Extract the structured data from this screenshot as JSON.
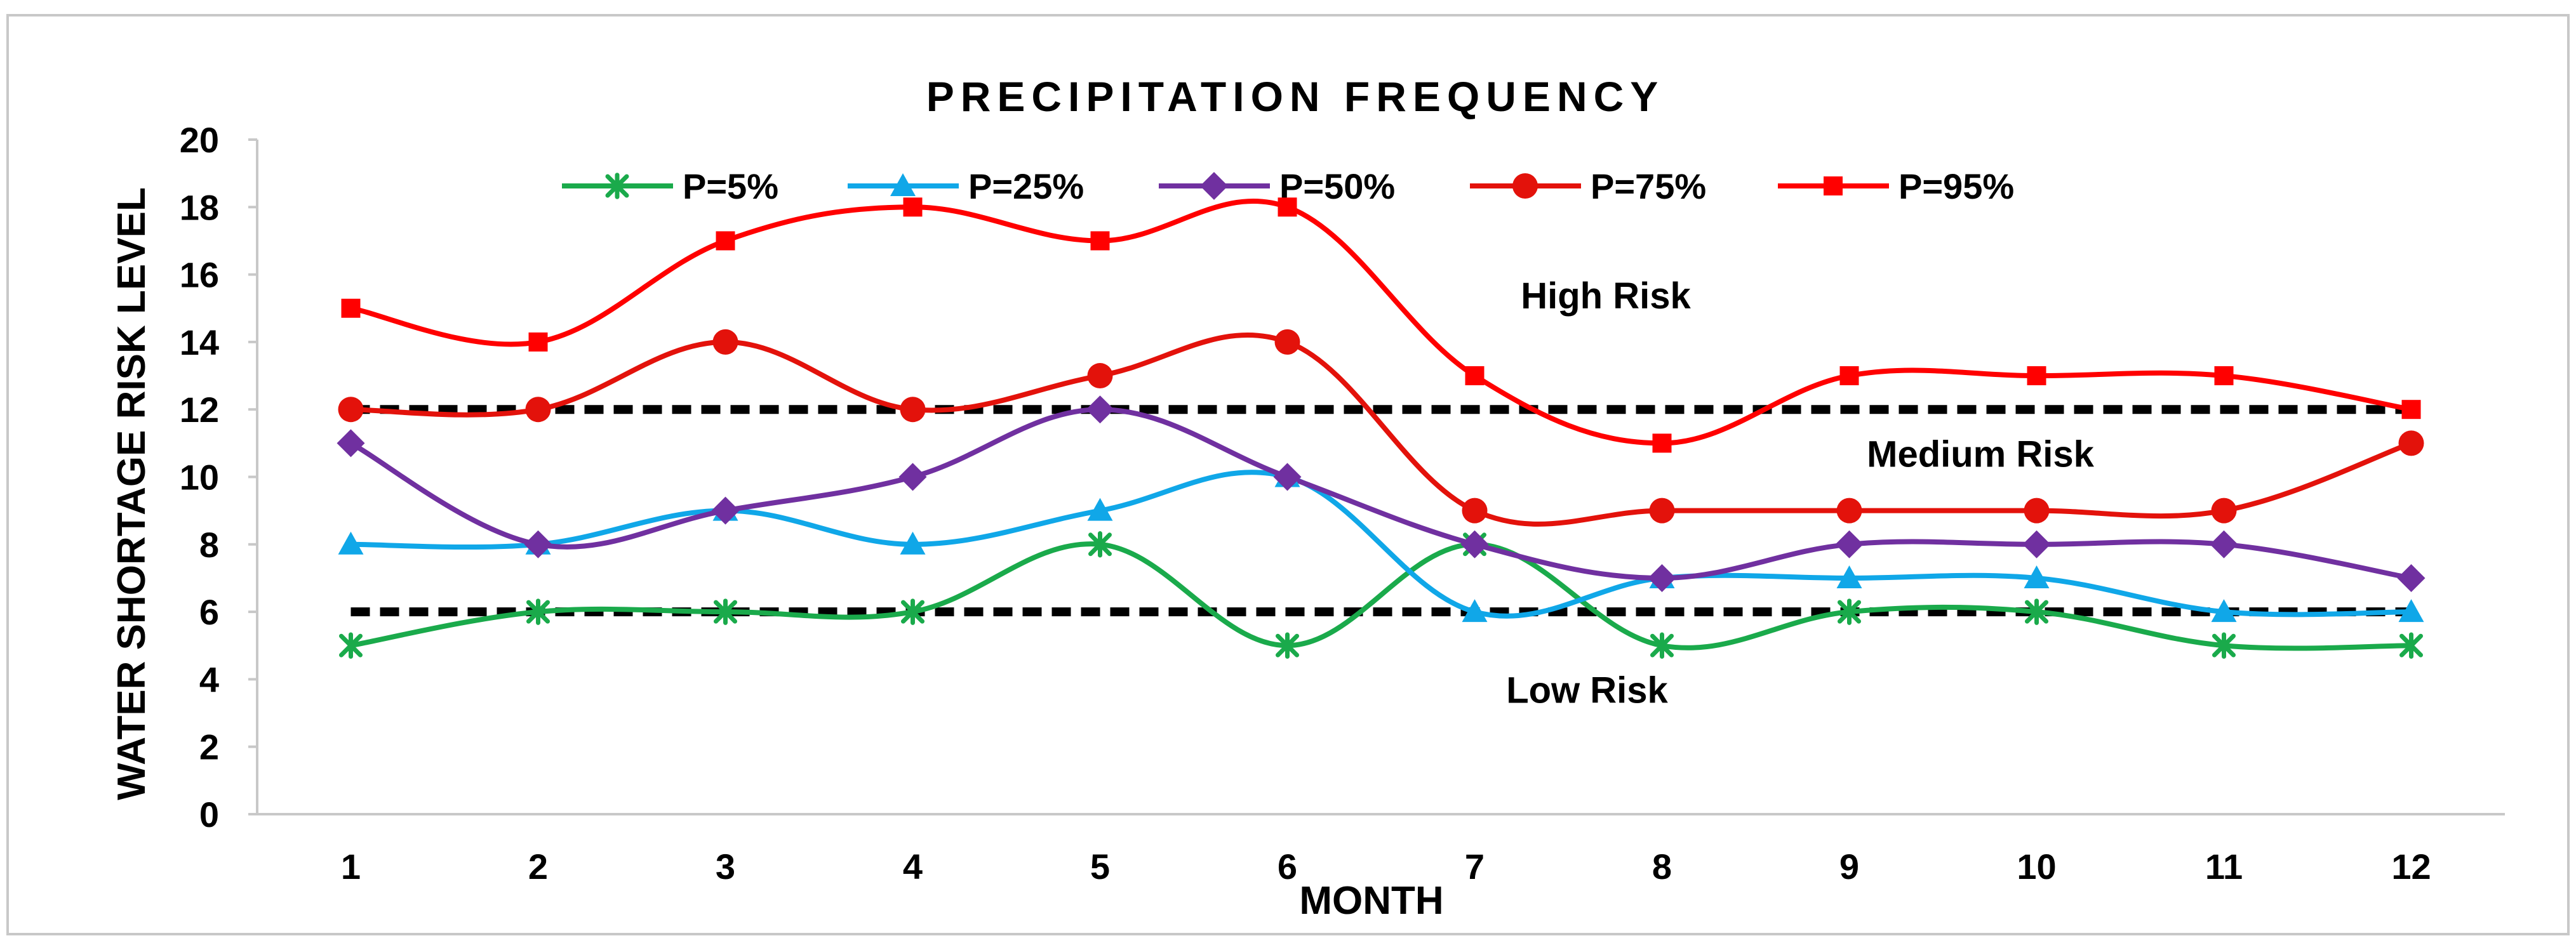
{
  "chart_data": {
    "type": "line",
    "title": "PRECIPITATION FREQUENCY",
    "xlabel": "MONTH",
    "ylabel": "WATER SHORTAGE RISK LEVEL",
    "categories": [
      "1",
      "2",
      "3",
      "4",
      "5",
      "6",
      "7",
      "8",
      "9",
      "10",
      "11",
      "12"
    ],
    "ylim": [
      0,
      20
    ],
    "yticks": [
      "0",
      "2",
      "4",
      "6",
      "8",
      "10",
      "12",
      "14",
      "16",
      "18",
      "20"
    ],
    "grid": false,
    "legend_position": "top",
    "smooth": true,
    "series": [
      {
        "name": "P=5%",
        "color": "#1aaa4b",
        "marker": "star",
        "values": [
          5,
          6,
          6,
          6,
          8,
          5,
          8,
          5,
          6,
          6,
          5,
          5
        ]
      },
      {
        "name": "P=25%",
        "color": "#10a7e8",
        "marker": "triangle",
        "values": [
          8,
          8,
          9,
          8,
          9,
          10,
          6,
          7,
          7,
          7,
          6,
          6
        ]
      },
      {
        "name": "P=50%",
        "color": "#7030a0",
        "marker": "diamond",
        "values": [
          11,
          8,
          9,
          10,
          12,
          10,
          8,
          7,
          8,
          8,
          8,
          7
        ]
      },
      {
        "name": "P=75%",
        "color": "#e3120b",
        "marker": "circle",
        "values": [
          12,
          12,
          14,
          12,
          13,
          14,
          9,
          9,
          9,
          9,
          9,
          11
        ]
      },
      {
        "name": "P=95%",
        "color": "#ff0000",
        "marker": "square",
        "values": [
          15,
          14,
          17,
          18,
          17,
          18,
          13,
          11,
          13,
          13,
          13,
          12
        ]
      }
    ],
    "thresholds": [
      {
        "name": "high-threshold",
        "value": 12,
        "color": "#000000"
      },
      {
        "name": "low-threshold",
        "value": 6,
        "color": "#000000"
      }
    ],
    "annotations": [
      {
        "id": "high",
        "text": "High Risk",
        "month": 7.7,
        "value": 15
      },
      {
        "id": "medium",
        "text": "Medium Risk",
        "month": 9.7,
        "value": 10.3
      },
      {
        "id": "low",
        "text": "Low Risk",
        "month": 7.6,
        "value": 3.3
      }
    ]
  }
}
